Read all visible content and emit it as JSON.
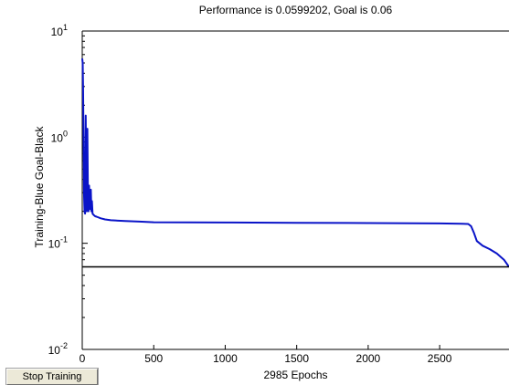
{
  "chart_data": {
    "type": "line",
    "title": "Performance is 0.0599202, Goal is 0.06",
    "xlabel": "2985 Epochs",
    "ylabel": "Training-Blue  Goal-Black",
    "xlim": [
      0,
      2985
    ],
    "ylim": [
      0.01,
      10
    ],
    "yscale": "log",
    "x_ticks": [
      0,
      500,
      1000,
      1500,
      2000,
      2500
    ],
    "y_ticks": [
      {
        "value": 10,
        "base": "10",
        "exp": "1"
      },
      {
        "value": 1,
        "base": "10",
        "exp": "0"
      },
      {
        "value": 0.1,
        "base": "10",
        "exp": "-1"
      },
      {
        "value": 0.01,
        "base": "10",
        "exp": "-2"
      }
    ],
    "grid": false,
    "series": [
      {
        "color": "#0a14c8",
        "x": [
          0,
          3,
          6,
          9,
          12,
          16,
          20,
          24,
          28,
          32,
          36,
          40,
          44,
          48,
          52,
          56,
          60,
          64,
          68,
          72,
          80,
          90,
          100,
          130,
          160,
          200,
          300,
          400,
          500,
          1000,
          1500,
          2000,
          2500,
          2650,
          2700,
          2720,
          2740,
          2760,
          2800,
          2850,
          2900,
          2950,
          2985
        ],
        "y": [
          5.5,
          5.0,
          3.0,
          1.0,
          0.3,
          0.2,
          0.19,
          1.6,
          0.4,
          0.2,
          1.2,
          0.25,
          0.2,
          0.35,
          0.22,
          0.21,
          0.32,
          0.2,
          0.25,
          0.19,
          0.185,
          0.18,
          0.178,
          0.172,
          0.168,
          0.165,
          0.162,
          0.16,
          0.158,
          0.157,
          0.156,
          0.155,
          0.154,
          0.153,
          0.152,
          0.145,
          0.125,
          0.105,
          0.095,
          0.088,
          0.08,
          0.07,
          0.0599202
        ]
      },
      {
        "color": "#000000",
        "x": [
          0,
          2985
        ],
        "y": [
          0.06,
          0.06
        ]
      }
    ]
  },
  "controls": {
    "stop_label": "Stop Training"
  }
}
